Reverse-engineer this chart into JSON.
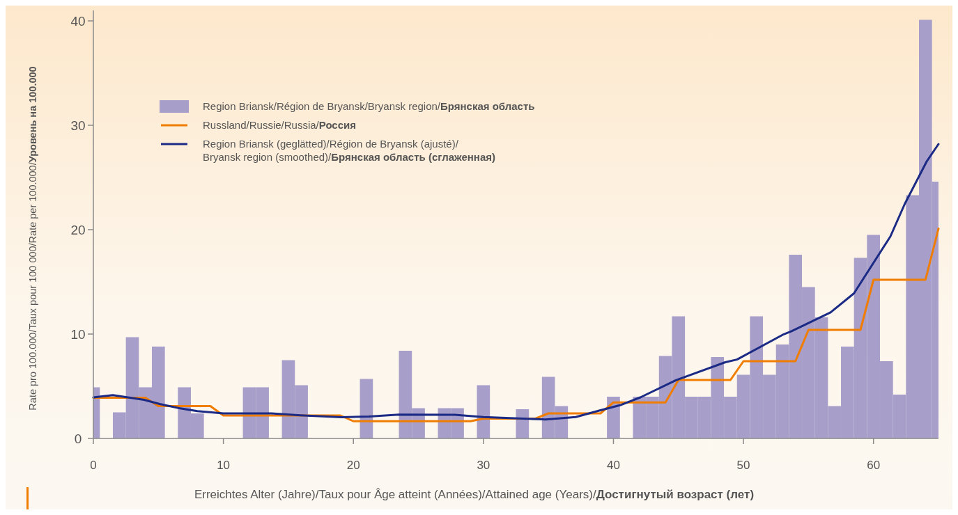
{
  "chart_data": {
    "type": "bar",
    "xlabel": "Erreichtes Alter (Jahre)/Taux pour Âge atteint (Années)/Attained age (Years)/Достигнутый возраст (лет)",
    "ylabel": "Rate pro 100.000/Taux pour 100 000/Rate per 100.000/Уровень на 100.000",
    "xlim": [
      0,
      65
    ],
    "xticks": [
      0,
      10,
      20,
      30,
      40,
      50,
      60
    ],
    "ylim": [
      0,
      41
    ],
    "yticks": [
      0,
      10,
      20,
      30,
      40
    ],
    "legend": "top left",
    "grid": false,
    "series": [
      {
        "name": "Region Briansk/Région de Bryansk/Bryansk region/Брянская область",
        "color": "#a79ec9",
        "x": [
          0,
          1,
          2,
          3,
          4,
          5,
          6,
          7,
          8,
          9,
          10,
          11,
          12,
          13,
          14,
          15,
          16,
          17,
          18,
          19,
          20,
          21,
          22,
          23,
          24,
          25,
          26,
          27,
          28,
          29,
          30,
          31,
          32,
          33,
          34,
          35,
          36,
          37,
          38,
          39,
          40,
          41,
          42,
          43,
          44,
          45,
          46,
          47,
          48,
          49,
          50,
          51,
          52,
          53,
          54,
          55,
          56,
          57,
          58,
          59,
          60,
          61,
          62,
          63,
          64,
          65
        ],
        "values": [
          4.9,
          0,
          2.5,
          9.7,
          4.9,
          8.8,
          0,
          4.9,
          2.4,
          0,
          0,
          0,
          4.9,
          4.9,
          0,
          7.5,
          5.1,
          0,
          0,
          0,
          0,
          5.7,
          0,
          0,
          8.4,
          2.9,
          0,
          2.9,
          2.9,
          0,
          5.1,
          0,
          0,
          2.8,
          0,
          5.9,
          3.1,
          0,
          0,
          0,
          4.0,
          0,
          4.0,
          4.0,
          7.9,
          11.7,
          4.0,
          4.0,
          7.8,
          4.0,
          6.1,
          11.7,
          6.1,
          9.0,
          17.6,
          14.5,
          11.6,
          3.1,
          8.8,
          17.3,
          19.5,
          7.4,
          4.2,
          23.3,
          40.1,
          24.6
        ]
      },
      {
        "name": "Russland/Russie/Russia/Россия",
        "type": "line",
        "color": "#f07d00",
        "x": [
          0,
          4,
          5,
          9,
          10,
          19,
          20,
          29,
          30,
          34,
          35,
          39,
          40,
          44,
          45,
          49,
          50,
          54,
          55,
          59,
          60,
          64,
          65
        ],
        "values": [
          3.9,
          3.9,
          3.1,
          3.1,
          2.2,
          2.2,
          1.65,
          1.65,
          1.9,
          1.9,
          2.4,
          2.4,
          3.45,
          3.45,
          5.6,
          5.6,
          7.4,
          7.4,
          10.4,
          10.4,
          15.2,
          15.2,
          20.1
        ]
      },
      {
        "name": "Region Briansk (geglätted)/Région de Bryansk (ajusté)/Bryansk region (smoothed)/Брянская область (сглаженная)",
        "type": "line",
        "color": "#1a2a85",
        "x": [
          0,
          1.5,
          3.9,
          5.1,
          6.6,
          8,
          10,
          13.7,
          15.9,
          19.1,
          21.2,
          23.5,
          27.8,
          30,
          34.8,
          37.1,
          38.9,
          40.6,
          42.1,
          44.8,
          48.6,
          49.5,
          53.1,
          53.7,
          56.7,
          58.5,
          61.3,
          62.4,
          64.1,
          65
        ],
        "values": [
          3.93,
          4.15,
          3.7,
          3.3,
          2.9,
          2.62,
          2.4,
          2.4,
          2.22,
          2.04,
          2.1,
          2.29,
          2.27,
          2.05,
          1.82,
          2.05,
          2.67,
          3.22,
          3.95,
          5.58,
          7.3,
          7.56,
          9.98,
          10.27,
          12.07,
          13.9,
          19.35,
          22.45,
          26.55,
          28.2
        ]
      }
    ]
  }
}
